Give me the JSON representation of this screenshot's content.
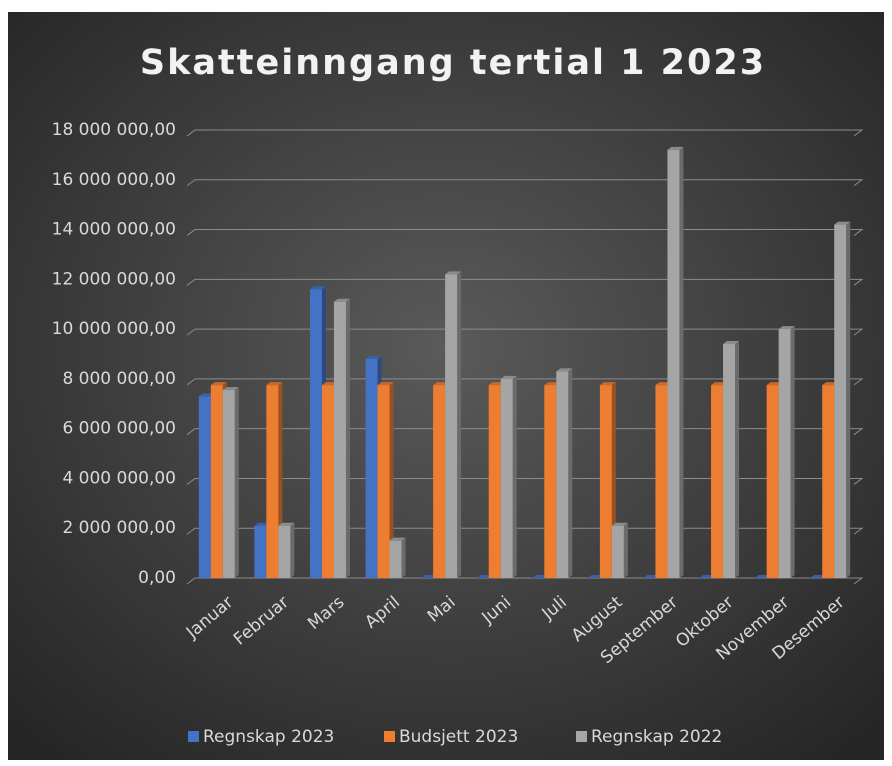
{
  "chart_data": {
    "type": "bar",
    "title": "Skatteinngang tertial 1 2023",
    "categories": [
      "Januar",
      "Februar",
      "Mars",
      "April",
      "Mai",
      "Juni",
      "Juli",
      "August",
      "September",
      "Oktober",
      "November",
      "Desember"
    ],
    "series": [
      {
        "name": "Regnskap 2023",
        "color": "#4472c4",
        "values": [
          7300000,
          2100000,
          11600000,
          8800000,
          0,
          0,
          0,
          0,
          0,
          0,
          0,
          0
        ]
      },
      {
        "name": "Budsjett 2023",
        "color": "#ed7d31",
        "values": [
          7750000,
          7750000,
          7750000,
          7750000,
          7750000,
          7750000,
          7750000,
          7750000,
          7750000,
          7750000,
          7750000,
          7750000
        ]
      },
      {
        "name": "Regnskap 2022",
        "color": "#a5a5a5",
        "values": [
          7550000,
          2100000,
          11100000,
          1500000,
          12200000,
          8000000,
          8300000,
          2100000,
          17200000,
          9400000,
          10000000,
          14200000
        ]
      }
    ],
    "ylim": [
      0,
      18000000
    ],
    "yticks": [
      {
        "value": 0,
        "label": "0,00"
      },
      {
        "value": 2000000,
        "label": "2 000 000,00"
      },
      {
        "value": 4000000,
        "label": "4 000 000,00"
      },
      {
        "value": 6000000,
        "label": "6 000 000,00"
      },
      {
        "value": 8000000,
        "label": "8 000 000,00"
      },
      {
        "value": 10000000,
        "label": "10 000 000,00"
      },
      {
        "value": 12000000,
        "label": "12 000 000,00"
      },
      {
        "value": 14000000,
        "label": "14 000 000,00"
      },
      {
        "value": 16000000,
        "label": "16 000 000,00"
      },
      {
        "value": 18000000,
        "label": "18 000 000,00"
      }
    ],
    "grid": true,
    "legend": "bottom"
  }
}
